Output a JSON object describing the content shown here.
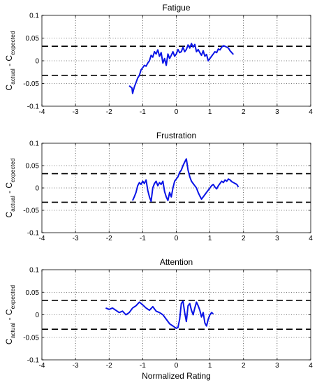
{
  "chart_data": [
    {
      "type": "line",
      "title": "Fatigue",
      "ylabel": {
        "main": "C",
        "sub1": "actual",
        "mid": " - C",
        "sub2": "expected"
      },
      "xlabel": "",
      "xlim": [
        -4,
        4
      ],
      "ylim": [
        -0.1,
        0.1
      ],
      "xticks": [
        "-4",
        "-3",
        "-2",
        "-1",
        "0",
        "1",
        "2",
        "3",
        "4"
      ],
      "yticks": [
        "-0.1",
        "-0.05",
        "0",
        "0.05",
        "0.1"
      ],
      "grid": true,
      "thresholds": [
        0.032,
        -0.032
      ],
      "series": [
        {
          "color": "#0a14e6",
          "x": [
            -1.4,
            -1.32,
            -1.3,
            -1.25,
            -1.2,
            -1.15,
            -1.1,
            -1.05,
            -1.0,
            -0.95,
            -0.9,
            -0.85,
            -0.8,
            -0.75,
            -0.7,
            -0.65,
            -0.6,
            -0.55,
            -0.5,
            -0.45,
            -0.4,
            -0.35,
            -0.3,
            -0.25,
            -0.2,
            -0.15,
            -0.1,
            -0.05,
            0.0,
            0.05,
            0.1,
            0.15,
            0.2,
            0.25,
            0.3,
            0.35,
            0.4,
            0.45,
            0.5,
            0.55,
            0.6,
            0.65,
            0.7,
            0.75,
            0.8,
            0.85,
            0.9,
            0.95,
            1.0,
            1.05,
            1.1,
            1.15,
            1.2,
            1.25,
            1.3,
            1.35,
            1.4,
            1.45,
            1.5,
            1.55,
            1.6,
            1.65,
            1.7
          ],
          "y": [
            -0.055,
            -0.06,
            -0.072,
            -0.058,
            -0.048,
            -0.038,
            -0.032,
            -0.02,
            -0.015,
            -0.01,
            -0.012,
            -0.005,
            0.0,
            0.012,
            0.008,
            0.02,
            0.015,
            0.024,
            0.01,
            0.018,
            -0.005,
            0.005,
            -0.01,
            0.015,
            0.005,
            0.012,
            0.02,
            0.01,
            0.015,
            0.025,
            0.018,
            0.02,
            0.03,
            0.02,
            0.025,
            0.035,
            0.028,
            0.038,
            0.03,
            0.036,
            0.02,
            0.025,
            0.018,
            0.012,
            0.022,
            0.01,
            0.014,
            0.0,
            0.005,
            0.01,
            0.015,
            0.02,
            0.018,
            0.026,
            0.024,
            0.03,
            0.033,
            0.032,
            0.03,
            0.028,
            0.022,
            0.018,
            0.014
          ]
        }
      ]
    },
    {
      "type": "line",
      "title": "Frustration",
      "ylabel": {
        "main": "C",
        "sub1": "actual",
        "mid": " - C",
        "sub2": "expected"
      },
      "xlabel": "",
      "xlim": [
        -4,
        4
      ],
      "ylim": [
        -0.1,
        0.1
      ],
      "xticks": [
        "-4",
        "-3",
        "-2",
        "-1",
        "0",
        "1",
        "2",
        "3",
        "4"
      ],
      "yticks": [
        "-0.1",
        "-0.05",
        "0",
        "0.05",
        "0.1"
      ],
      "grid": true,
      "thresholds": [
        0.032,
        -0.032
      ],
      "series": [
        {
          "color": "#0a14e6",
          "x": [
            -1.3,
            -1.25,
            -1.2,
            -1.15,
            -1.1,
            -1.05,
            -1.0,
            -0.95,
            -0.9,
            -0.85,
            -0.8,
            -0.75,
            -0.7,
            -0.65,
            -0.6,
            -0.55,
            -0.5,
            -0.45,
            -0.4,
            -0.35,
            -0.3,
            -0.25,
            -0.2,
            -0.15,
            -0.1,
            -0.05,
            0.0,
            0.05,
            0.1,
            0.15,
            0.2,
            0.25,
            0.3,
            0.35,
            0.4,
            0.45,
            0.5,
            0.55,
            0.6,
            0.65,
            0.7,
            0.75,
            0.8,
            0.85,
            0.9,
            0.95,
            1.0,
            1.05,
            1.1,
            1.15,
            1.2,
            1.25,
            1.3,
            1.35,
            1.4,
            1.45,
            1.5,
            1.55,
            1.6,
            1.65,
            1.7,
            1.75,
            1.8,
            1.85
          ],
          "y": [
            -0.028,
            -0.02,
            -0.01,
            0.005,
            0.012,
            0.008,
            0.015,
            0.01,
            0.018,
            -0.005,
            -0.02,
            -0.03,
            0.0,
            0.01,
            0.015,
            0.005,
            0.012,
            0.008,
            0.015,
            -0.008,
            -0.02,
            -0.028,
            -0.01,
            -0.02,
            0.0,
            0.015,
            0.02,
            0.025,
            0.035,
            0.04,
            0.05,
            0.058,
            0.065,
            0.04,
            0.025,
            0.015,
            0.01,
            0.005,
            0.0,
            -0.01,
            -0.018,
            -0.025,
            -0.02,
            -0.015,
            -0.01,
            -0.005,
            0.0,
            0.005,
            0.008,
            0.002,
            -0.002,
            0.005,
            0.01,
            0.015,
            0.012,
            0.018,
            0.015,
            0.02,
            0.018,
            0.014,
            0.012,
            0.01,
            0.008,
            0.002
          ]
        }
      ]
    },
    {
      "type": "line",
      "title": "Attention",
      "ylabel": {
        "main": "C",
        "sub1": "actual",
        "mid": " - C",
        "sub2": "expected"
      },
      "xlabel": "Normalized Rating",
      "xlim": [
        -4,
        4
      ],
      "ylim": [
        -0.1,
        0.1
      ],
      "xticks": [
        "-4",
        "-3",
        "-2",
        "-1",
        "0",
        "1",
        "2",
        "3",
        "4"
      ],
      "yticks": [
        "-0.1",
        "-0.05",
        "0",
        "0.05",
        "0.1"
      ],
      "grid": true,
      "thresholds": [
        0.032,
        -0.032
      ],
      "series": [
        {
          "color": "#0a14e6",
          "x": [
            -2.1,
            -2.0,
            -1.9,
            -1.8,
            -1.7,
            -1.6,
            -1.5,
            -1.4,
            -1.3,
            -1.2,
            -1.1,
            -1.0,
            -0.9,
            -0.8,
            -0.7,
            -0.6,
            -0.5,
            -0.4,
            -0.3,
            -0.2,
            -0.1,
            0.0,
            0.05,
            0.1,
            0.15,
            0.2,
            0.25,
            0.3,
            0.35,
            0.4,
            0.45,
            0.5,
            0.55,
            0.6,
            0.65,
            0.7,
            0.75,
            0.8,
            0.85,
            0.9,
            0.95,
            1.0,
            1.05,
            1.1
          ],
          "y": [
            0.015,
            0.012,
            0.015,
            0.01,
            0.005,
            0.008,
            0.0,
            0.005,
            0.015,
            0.02,
            0.028,
            0.022,
            0.015,
            0.01,
            0.018,
            0.008,
            0.005,
            0.0,
            -0.01,
            -0.02,
            -0.025,
            -0.03,
            -0.028,
            -0.01,
            0.025,
            0.03,
            0.005,
            -0.015,
            0.02,
            0.025,
            0.01,
            0.0,
            0.015,
            0.028,
            0.02,
            0.01,
            -0.005,
            0.005,
            -0.018,
            -0.025,
            -0.01,
            0.0,
            0.005,
            0.002
          ]
        }
      ]
    }
  ]
}
